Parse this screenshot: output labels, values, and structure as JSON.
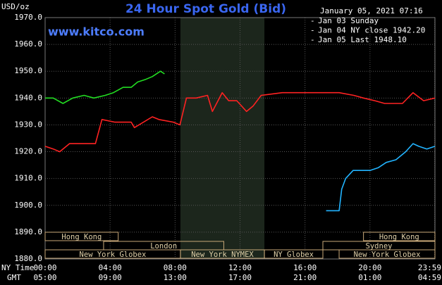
{
  "chart_data": {
    "type": "line",
    "title": "24 Hour Spot Gold (Bid)",
    "watermark": "www.kitco.com",
    "y_unit": "USD/oz",
    "timestamp": "January 05, 2021 07:16",
    "x_row_labels": [
      "NY Time",
      "GMT"
    ],
    "xlim": [
      0,
      24
    ],
    "ylim": [
      1880,
      1970
    ],
    "xticks": [
      {
        "value": 0,
        "label": "00:00"
      },
      {
        "value": 4,
        "label": "04:00"
      },
      {
        "value": 8,
        "label": "08:00"
      },
      {
        "value": 12,
        "label": "12:00"
      },
      {
        "value": 16,
        "label": "16:00"
      },
      {
        "value": 20,
        "label": "20:00"
      },
      {
        "value": 23.983,
        "label": "23:59"
      }
    ],
    "xticks_gmt": [
      {
        "value": 0,
        "label": "05:00"
      },
      {
        "value": 4,
        "label": "09:00"
      },
      {
        "value": 8,
        "label": "13:00"
      },
      {
        "value": 12,
        "label": "17:00"
      },
      {
        "value": 16,
        "label": "21:00"
      },
      {
        "value": 20,
        "label": "01:00"
      },
      {
        "value": 23.983,
        "label": "04:59"
      }
    ],
    "yticks": [
      {
        "value": 1880,
        "label": "1880.0"
      },
      {
        "value": 1890,
        "label": "1890.0"
      },
      {
        "value": 1900,
        "label": "1900.0"
      },
      {
        "value": 1910,
        "label": "1910.0"
      },
      {
        "value": 1920,
        "label": "1920.0"
      },
      {
        "value": 1930,
        "label": "1930.0"
      },
      {
        "value": 1940,
        "label": "1940.0"
      },
      {
        "value": 1950,
        "label": "1950.0"
      },
      {
        "value": 1960,
        "label": "1960.0"
      },
      {
        "value": 1970,
        "label": "1970.0"
      }
    ],
    "grid": true,
    "sessions": [
      {
        "name": "Hong Kong",
        "start": 0,
        "end": 4.5,
        "shade": false
      },
      {
        "name": "London",
        "start": 3.6,
        "end": 11.0,
        "shade": false
      },
      {
        "name": "New York Globex",
        "start": 0,
        "end": 8.33,
        "shade": false
      },
      {
        "name": "New York NYMEX",
        "start": 8.33,
        "end": 13.5,
        "shade": true
      },
      {
        "name": "NY Globex",
        "start": 13.5,
        "end": 17.1,
        "shade": false
      },
      {
        "name": "Hong Kong",
        "start": 19.6,
        "end": 24,
        "shade": false
      },
      {
        "name": "Sydney",
        "start": 17.1,
        "end": 24,
        "shade": false
      },
      {
        "name": "New York Globex",
        "start": 18.1,
        "end": 24,
        "shade": false
      }
    ],
    "series": [
      {
        "name": "Jan 03 Sunday",
        "color": "#22b4ff",
        "x": [
          17.3,
          18.1,
          18.26,
          18.5,
          18.96,
          19.5,
          20.0,
          20.5,
          21.0,
          21.6,
          22.2,
          22.65,
          23.0,
          23.5,
          24.0
        ],
        "values": [
          1898,
          1898,
          1906,
          1910,
          1913,
          1913,
          1913,
          1914,
          1916,
          1917,
          1920,
          1923,
          1922,
          1921,
          1922
        ]
      },
      {
        "name": "Jan 04 NY close 1942.20",
        "color": "#ff2222",
        "x": [
          0,
          0.5,
          0.9,
          1.5,
          2.3,
          3.1,
          3.5,
          4.3,
          5.3,
          5.5,
          6.6,
          7.0,
          7.9,
          8.3,
          8.7,
          9.3,
          10.0,
          10.3,
          10.9,
          11.3,
          11.8,
          12.4,
          12.8,
          13.3,
          14.6,
          15.5,
          16.3,
          17.2,
          18.1,
          19.0,
          19.6,
          20.3,
          20.9,
          22.0,
          22.65,
          23.3,
          24.0
        ],
        "values": [
          1922,
          1921,
          1920,
          1923,
          1923,
          1923,
          1932,
          1931,
          1931,
          1929,
          1933,
          1932,
          1931,
          1930,
          1940,
          1940,
          1941,
          1935,
          1942,
          1939,
          1939,
          1935,
          1937,
          1941,
          1942,
          1942,
          1942,
          1942,
          1942,
          1941,
          1940,
          1939,
          1938,
          1938,
          1942,
          1939,
          1940
        ]
      },
      {
        "name": "Jan 05 Last 1948.10",
        "color": "#22dd22",
        "x": [
          0,
          0.5,
          1.1,
          1.7,
          2.4,
          3.0,
          3.7,
          4.2,
          4.8,
          5.3,
          5.7,
          6.2,
          6.6,
          7.1,
          7.35
        ],
        "values": [
          1940,
          1940,
          1938,
          1940,
          1941,
          1940,
          1941,
          1942,
          1944,
          1944,
          1946,
          1947,
          1948,
          1950,
          1949
        ]
      }
    ],
    "legend": "upper right"
  }
}
